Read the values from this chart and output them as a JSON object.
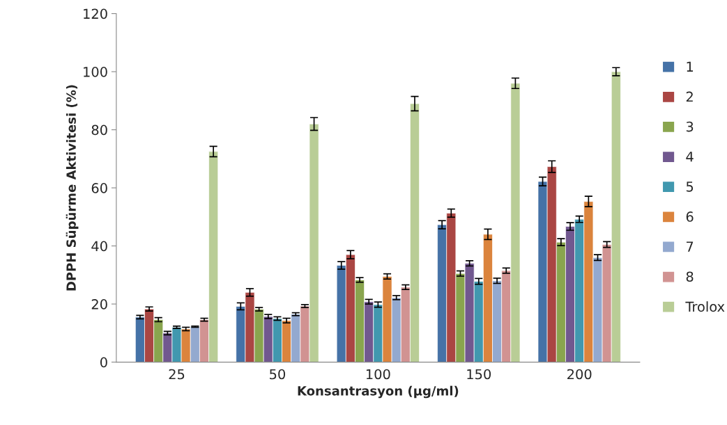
{
  "chart_data": {
    "type": "bar",
    "xlabel": "Konsantrasyon (µg/ml)",
    "ylabel": "DPPH Süpürme Aktivitesi (%)",
    "categories": [
      "25",
      "50",
      "100",
      "150",
      "200"
    ],
    "ylim": [
      0,
      120
    ],
    "yticks": [
      0,
      20,
      40,
      60,
      80,
      100,
      120
    ],
    "grid": false,
    "legend": "right",
    "series": [
      {
        "name": "1",
        "color": "#4572a7",
        "values": [
          15.5,
          19.2,
          33.3,
          47.3,
          62.2
        ],
        "errors": [
          0.6,
          1.2,
          1.3,
          1.4,
          1.5
        ]
      },
      {
        "name": "2",
        "color": "#aa4643",
        "values": [
          18.3,
          24,
          37,
          51.3,
          67.3
        ],
        "errors": [
          0.7,
          1.3,
          1.4,
          1.4,
          2
        ]
      },
      {
        "name": "3",
        "color": "#89a54e",
        "values": [
          14.6,
          18.2,
          28.3,
          30.5,
          41.3
        ],
        "errors": [
          0.7,
          0.6,
          0.8,
          0.9,
          1.2
        ]
      },
      {
        "name": "4",
        "color": "#71588f",
        "values": [
          10,
          15.7,
          20.8,
          34,
          46.7
        ],
        "errors": [
          0.6,
          0.7,
          0.8,
          0.9,
          1.3
        ]
      },
      {
        "name": "5",
        "color": "#4198af",
        "values": [
          12,
          15,
          19.8,
          27.8,
          49.2
        ],
        "errors": [
          0.4,
          0.6,
          0.9,
          1.0,
          1.1
        ]
      },
      {
        "name": "6",
        "color": "#db843d",
        "values": [
          11.4,
          14.3,
          29.5,
          44,
          55.3
        ],
        "errors": [
          0.6,
          0.8,
          0.9,
          1.8,
          1.8
        ]
      },
      {
        "name": "7",
        "color": "#93a9cf",
        "values": [
          12.2,
          16.5,
          22.2,
          28,
          36
        ],
        "errors": [
          0.2,
          0.5,
          0.7,
          0.9,
          1.0
        ]
      },
      {
        "name": "8",
        "color": "#d19392",
        "values": [
          14.6,
          19.3,
          25.8,
          31.5,
          40.5
        ],
        "errors": [
          0.5,
          0.5,
          0.8,
          0.9,
          1.0
        ]
      },
      {
        "name": "Trolox",
        "color": "#b9cd96",
        "values": [
          72.5,
          82,
          89,
          96,
          100
        ],
        "errors": [
          1.8,
          2.2,
          2.5,
          1.8,
          1.4
        ]
      }
    ]
  }
}
